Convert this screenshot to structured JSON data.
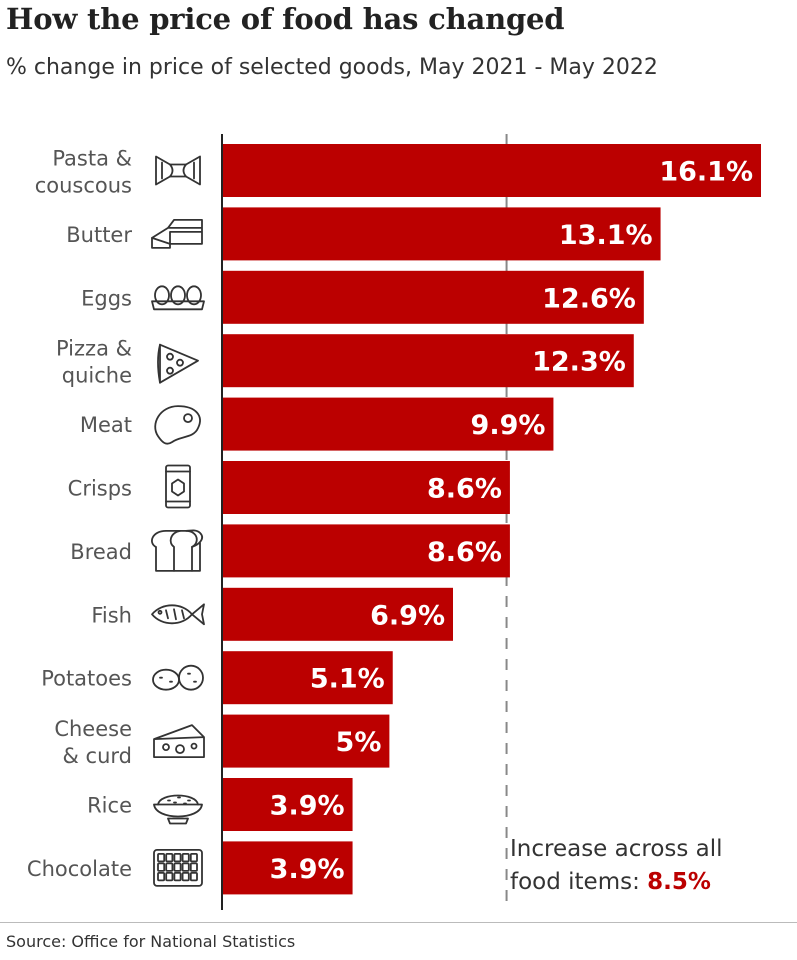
{
  "header": {
    "title": "How the price of food has changed",
    "subtitle": "% change in price of selected goods, May 2021 - May 2022"
  },
  "footer": {
    "source": "Source: Office for National Statistics"
  },
  "annotation": {
    "line1": "Increase across all",
    "line2_prefix": "food items: ",
    "line2_value": "8.5%"
  },
  "colors": {
    "bar": "#bb0000",
    "accent_text": "#bb0000",
    "label": "#555555",
    "icon": "#333333",
    "reference_line": "#888888"
  },
  "chart_data": {
    "type": "bar",
    "orientation": "horizontal",
    "title": "How the price of food has changed",
    "subtitle": "% change in price of selected goods, May 2021 - May 2022",
    "categories": [
      [
        "Pasta &",
        "couscous"
      ],
      [
        "Butter"
      ],
      [
        "Eggs"
      ],
      [
        "Pizza &",
        "quiche"
      ],
      [
        "Meat"
      ],
      [
        "Crisps"
      ],
      [
        "Bread"
      ],
      [
        "Fish"
      ],
      [
        "Potatoes"
      ],
      [
        "Cheese",
        "& curd"
      ],
      [
        "Rice"
      ],
      [
        "Chocolate"
      ]
    ],
    "icons": [
      "pasta-icon",
      "butter-icon",
      "eggs-icon",
      "pizza-icon",
      "meat-icon",
      "crisps-icon",
      "bread-icon",
      "fish-icon",
      "potatoes-icon",
      "cheese-icon",
      "rice-icon",
      "chocolate-icon"
    ],
    "values": [
      16.1,
      13.1,
      12.6,
      12.3,
      9.9,
      8.6,
      8.6,
      6.9,
      5.1,
      5.0,
      3.9,
      3.9
    ],
    "value_labels": [
      "16.1%",
      "13.1%",
      "12.6%",
      "12.3%",
      "9.9%",
      "8.6%",
      "8.6%",
      "6.9%",
      "5.1%",
      "5%",
      "3.9%",
      "3.9%"
    ],
    "reference_line": {
      "value": 8.5
    },
    "xlim": [
      0,
      16.1
    ],
    "grid": false,
    "legend": "none"
  }
}
